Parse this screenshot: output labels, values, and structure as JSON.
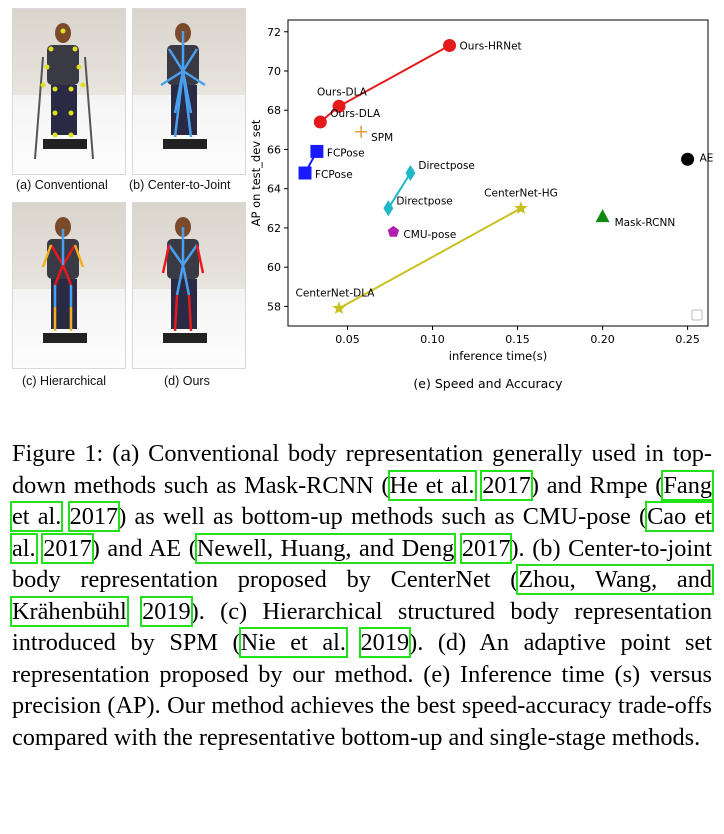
{
  "panels": {
    "a": "(a) Conventional",
    "b": "(b) Center-to-Joint",
    "c": "(c) Hierarchical",
    "d": "(d) Ours",
    "e": "(e) Speed and Accuracy"
  },
  "colors": {
    "red": "#e41a1c",
    "blue": "#1a1aff",
    "orange": "#e69a3a",
    "cyan": "#20b8c8",
    "purple": "#b020b0",
    "olive": "#c8c020",
    "green": "#118811",
    "black": "#000000",
    "citation_box": "#22e01a"
  },
  "chart_data": {
    "type": "scatter",
    "xlabel": "inference time(s)",
    "ylabel": "AP on test_dev set",
    "xlim": [
      0.015,
      0.262
    ],
    "ylim": [
      57,
      72.6
    ],
    "xticks": [
      0.05,
      0.1,
      0.15,
      0.2,
      0.25
    ],
    "xticklabels": [
      "0.05",
      "0.10",
      "0.15",
      "0.20",
      "0.25"
    ],
    "yticks": [
      58,
      60,
      62,
      64,
      66,
      68,
      70,
      72
    ],
    "legend": "bottom-right (empty)",
    "grid": false,
    "series": [
      {
        "name": "Ours-HRNet / Ours-DLA",
        "marker": "circle",
        "color": "#e41a1c",
        "points": [
          [
            0.034,
            67.4
          ],
          [
            0.045,
            68.2
          ],
          [
            0.11,
            71.3
          ]
        ],
        "connected": true,
        "labels": [
          {
            "text": "Ours-DLA",
            "x": 0.034,
            "y": 67.4
          },
          {
            "text": "Ours-DLA",
            "x": 0.045,
            "y": 68.2
          },
          {
            "text": "Ours-HRNet",
            "x": 0.11,
            "y": 71.3
          }
        ]
      },
      {
        "name": "FCPose",
        "marker": "square",
        "color": "#1a1aff",
        "points": [
          [
            0.025,
            64.8
          ],
          [
            0.032,
            65.9
          ]
        ],
        "connected": true,
        "labels": [
          {
            "text": "FCPose",
            "x": 0.025,
            "y": 64.8
          },
          {
            "text": "FCPose",
            "x": 0.032,
            "y": 65.9
          }
        ]
      },
      {
        "name": "SPM",
        "marker": "plus",
        "color": "#e69a3a",
        "points": [
          [
            0.058,
            66.9
          ]
        ],
        "connected": false,
        "labels": [
          {
            "text": "SPM",
            "x": 0.058,
            "y": 66.9
          }
        ]
      },
      {
        "name": "Directpose",
        "marker": "diamond",
        "color": "#20b8c8",
        "points": [
          [
            0.074,
            63.0
          ],
          [
            0.087,
            64.8
          ]
        ],
        "connected": true,
        "labels": [
          {
            "text": "Directpose",
            "x": 0.074,
            "y": 63.0
          },
          {
            "text": "Directpose",
            "x": 0.087,
            "y": 64.8
          }
        ]
      },
      {
        "name": "CMU-pose",
        "marker": "pentagon",
        "color": "#b020b0",
        "points": [
          [
            0.077,
            61.8
          ]
        ],
        "connected": false,
        "labels": [
          {
            "text": "CMU-pose",
            "x": 0.077,
            "y": 61.8
          }
        ]
      },
      {
        "name": "CenterNet",
        "marker": "star",
        "color": "#c8c020",
        "points": [
          [
            0.045,
            57.9
          ],
          [
            0.152,
            63.0
          ]
        ],
        "connected": true,
        "labels": [
          {
            "text": "CenterNet-DLA",
            "x": 0.045,
            "y": 57.9
          },
          {
            "text": "CenterNet-HG",
            "x": 0.152,
            "y": 63.0
          }
        ]
      },
      {
        "name": "Mask-RCNN",
        "marker": "triangle",
        "color": "#118811",
        "points": [
          [
            0.2,
            62.6
          ]
        ],
        "connected": false,
        "labels": [
          {
            "text": "Mask-RCNN",
            "x": 0.2,
            "y": 62.6
          }
        ]
      },
      {
        "name": "AE",
        "marker": "circle",
        "color": "#000000",
        "points": [
          [
            0.25,
            65.5
          ]
        ],
        "connected": false,
        "labels": [
          {
            "text": "AE",
            "x": 0.25,
            "y": 65.5
          }
        ]
      }
    ]
  },
  "caption": {
    "parts": [
      {
        "t": "Figure 1: (a) Conventional body representation generally used in top-down methods such as Mask-RCNN ("
      },
      {
        "t": "He et al.",
        "cite": true
      },
      {
        "t": " "
      },
      {
        "t": "2017",
        "cite": true
      },
      {
        "t": ") and Rmpe ("
      },
      {
        "t": "Fang et al.",
        "cite": true
      },
      {
        "t": " "
      },
      {
        "t": "2017",
        "cite": true
      },
      {
        "t": ") as well as bottom-up methods such as CMU-pose ("
      },
      {
        "t": "Cao et al.",
        "cite": true
      },
      {
        "t": " "
      },
      {
        "t": "2017",
        "cite": true
      },
      {
        "t": ") and AE ("
      },
      {
        "t": "Newell, Huang, and Deng",
        "cite": true
      },
      {
        "t": " "
      },
      {
        "t": "2017",
        "cite": true
      },
      {
        "t": "). (b) Center-to-joint body representation proposed by CenterNet ("
      },
      {
        "t": "Zhou, Wang, and Krähenbühl",
        "cite": true
      },
      {
        "t": " "
      },
      {
        "t": "2019",
        "cite": true
      },
      {
        "t": "). (c) Hierarchical structured body representation introduced by SPM ("
      },
      {
        "t": "Nie et al.",
        "cite": true
      },
      {
        "t": " "
      },
      {
        "t": "2019",
        "cite": true
      },
      {
        "t": "). (d) An adaptive point set representation proposed by our method. (e) Inference time (s) versus precision (AP). Our method achieves the best speed-accuracy trade-offs compared with the representative bottom-up and single-stage methods."
      }
    ]
  }
}
